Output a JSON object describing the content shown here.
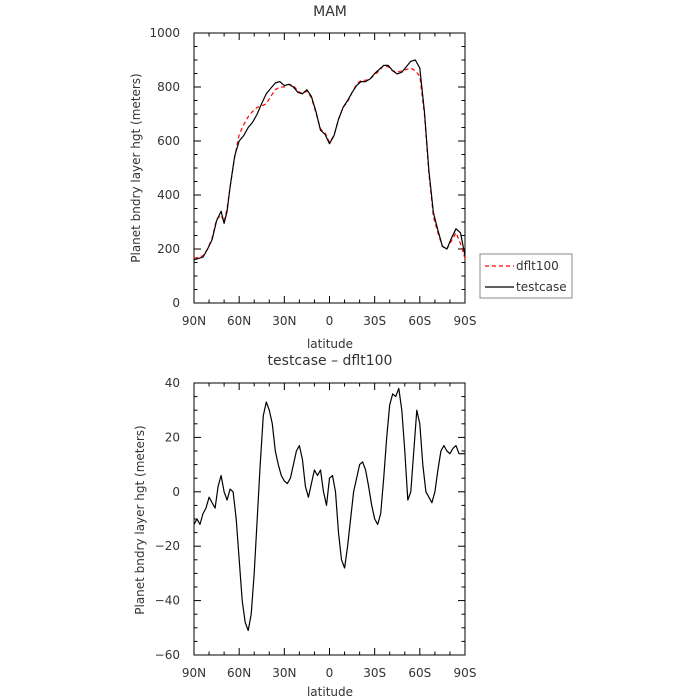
{
  "chart_data": [
    {
      "type": "line",
      "title": "MAM",
      "xlabel": "latitude",
      "ylabel": "Planet bndry layer hgt (meters)",
      "xlim": [
        -90,
        90
      ],
      "ylim": [
        0,
        1000
      ],
      "x_ticks": [
        -90,
        -60,
        -30,
        0,
        30,
        60,
        90
      ],
      "x_tick_labels": [
        "90N",
        "60N",
        "30N",
        "0",
        "30S",
        "60S",
        "90S"
      ],
      "y_ticks": [
        0,
        200,
        400,
        600,
        800,
        1000
      ],
      "y_tick_labels": [
        "0",
        "200",
        "400",
        "600",
        "800",
        "1000"
      ],
      "legend_position": "right",
      "series": [
        {
          "name": "dflt100",
          "color": "#ff0000",
          "dash": "dashed",
          "x": [
            -90,
            -87,
            -84,
            -81,
            -78,
            -75,
            -72,
            -70,
            -68,
            -66,
            -63,
            -60,
            -57,
            -54,
            -51,
            -48,
            -45,
            -42,
            -39,
            -36,
            -33,
            -30,
            -27,
            -24,
            -21,
            -18,
            -15,
            -12,
            -9,
            -6,
            -3,
            0,
            3,
            6,
            9,
            12,
            15,
            18,
            21,
            24,
            27,
            30,
            33,
            36,
            39,
            42,
            45,
            48,
            51,
            54,
            57,
            60,
            63,
            66,
            69,
            72,
            75,
            78,
            81,
            84,
            87,
            90
          ],
          "y": [
            165,
            170,
            175,
            200,
            240,
            310,
            325,
            300,
            350,
            430,
            540,
            625,
            660,
            690,
            710,
            725,
            730,
            738,
            765,
            790,
            800,
            800,
            810,
            805,
            785,
            775,
            785,
            760,
            705,
            645,
            630,
            595,
            620,
            680,
            725,
            745,
            780,
            810,
            825,
            825,
            830,
            845,
            860,
            880,
            875,
            860,
            855,
            860,
            865,
            870,
            860,
            840,
            700,
            480,
            320,
            260,
            210,
            200,
            230,
            260,
            220,
            165
          ]
        },
        {
          "name": "testcase",
          "color": "#000000",
          "dash": "solid",
          "x": [
            -90,
            -87,
            -84,
            -81,
            -78,
            -75,
            -72,
            -70,
            -68,
            -66,
            -63,
            -60,
            -57,
            -54,
            -51,
            -48,
            -45,
            -42,
            -39,
            -36,
            -33,
            -30,
            -27,
            -24,
            -21,
            -18,
            -15,
            -12,
            -9,
            -6,
            -3,
            0,
            3,
            6,
            9,
            12,
            15,
            18,
            21,
            24,
            27,
            30,
            33,
            36,
            39,
            42,
            45,
            48,
            51,
            54,
            57,
            60,
            63,
            66,
            69,
            72,
            75,
            78,
            81,
            84,
            87,
            90
          ],
          "y": [
            160,
            165,
            170,
            200,
            235,
            305,
            340,
            295,
            340,
            430,
            545,
            600,
            620,
            650,
            670,
            700,
            740,
            775,
            795,
            815,
            820,
            805,
            810,
            800,
            780,
            775,
            790,
            765,
            710,
            640,
            625,
            590,
            620,
            680,
            725,
            750,
            780,
            805,
            820,
            820,
            830,
            850,
            865,
            880,
            880,
            860,
            848,
            855,
            875,
            895,
            900,
            870,
            710,
            490,
            335,
            270,
            210,
            200,
            240,
            275,
            260,
            175
          ]
        }
      ]
    },
    {
      "type": "line",
      "title": "testcase – dflt100",
      "xlabel": "latitude",
      "ylabel": "Planet bndry layer hgt (meters)",
      "xlim": [
        -90,
        90
      ],
      "ylim": [
        -60,
        40
      ],
      "x_ticks": [
        -90,
        -60,
        -30,
        0,
        30,
        60,
        90
      ],
      "x_tick_labels": [
        "90N",
        "60N",
        "30N",
        "0",
        "30S",
        "60S",
        "90S"
      ],
      "y_ticks": [
        -60,
        -40,
        -20,
        0,
        20,
        40
      ],
      "y_tick_labels": [
        "−60",
        "−40",
        "−20",
        "0",
        "20",
        "40"
      ],
      "series": [
        {
          "name": "",
          "color": "#000000",
          "dash": "solid",
          "x": [
            -90,
            -88,
            -86,
            -84,
            -82,
            -80,
            -78,
            -76,
            -74,
            -72,
            -70,
            -68,
            -66,
            -64,
            -62,
            -60,
            -58,
            -56,
            -54,
            -52,
            -50,
            -48,
            -46,
            -44,
            -42,
            -40,
            -38,
            -36,
            -34,
            -32,
            -30,
            -28,
            -26,
            -24,
            -22,
            -20,
            -18,
            -16,
            -14,
            -12,
            -10,
            -8,
            -6,
            -4,
            -2,
            0,
            2,
            4,
            6,
            8,
            10,
            12,
            14,
            16,
            18,
            20,
            22,
            24,
            26,
            28,
            30,
            32,
            34,
            36,
            38,
            40,
            42,
            44,
            46,
            48,
            50,
            52,
            54,
            56,
            58,
            60,
            62,
            64,
            66,
            68,
            70,
            72,
            74,
            76,
            78,
            80,
            82,
            84,
            86,
            88,
            90
          ],
          "y": [
            -12,
            -10,
            -12,
            -8,
            -6,
            -2,
            -4,
            -6,
            2,
            6,
            0,
            -3,
            1,
            0,
            -10,
            -25,
            -40,
            -48,
            -51,
            -45,
            -30,
            -10,
            10,
            28,
            33,
            30,
            25,
            15,
            10,
            6,
            4,
            3,
            5,
            10,
            15,
            17,
            12,
            2,
            -2,
            3,
            8,
            6,
            8,
            0,
            -5,
            5,
            6,
            0,
            -15,
            -25,
            -28,
            -20,
            -10,
            0,
            5,
            10,
            11,
            8,
            2,
            -5,
            -10,
            -12,
            -8,
            5,
            20,
            32,
            36,
            35,
            38,
            30,
            15,
            -3,
            0,
            15,
            30,
            25,
            10,
            0,
            -2,
            -4,
            0,
            8,
            15,
            17,
            15,
            14,
            16,
            17,
            14,
            14,
            14
          ]
        }
      ]
    }
  ],
  "legend": [
    {
      "label": "dflt100",
      "color": "#ff0000",
      "dash": "dashed"
    },
    {
      "label": "testcase",
      "color": "#000000",
      "dash": "solid"
    }
  ]
}
